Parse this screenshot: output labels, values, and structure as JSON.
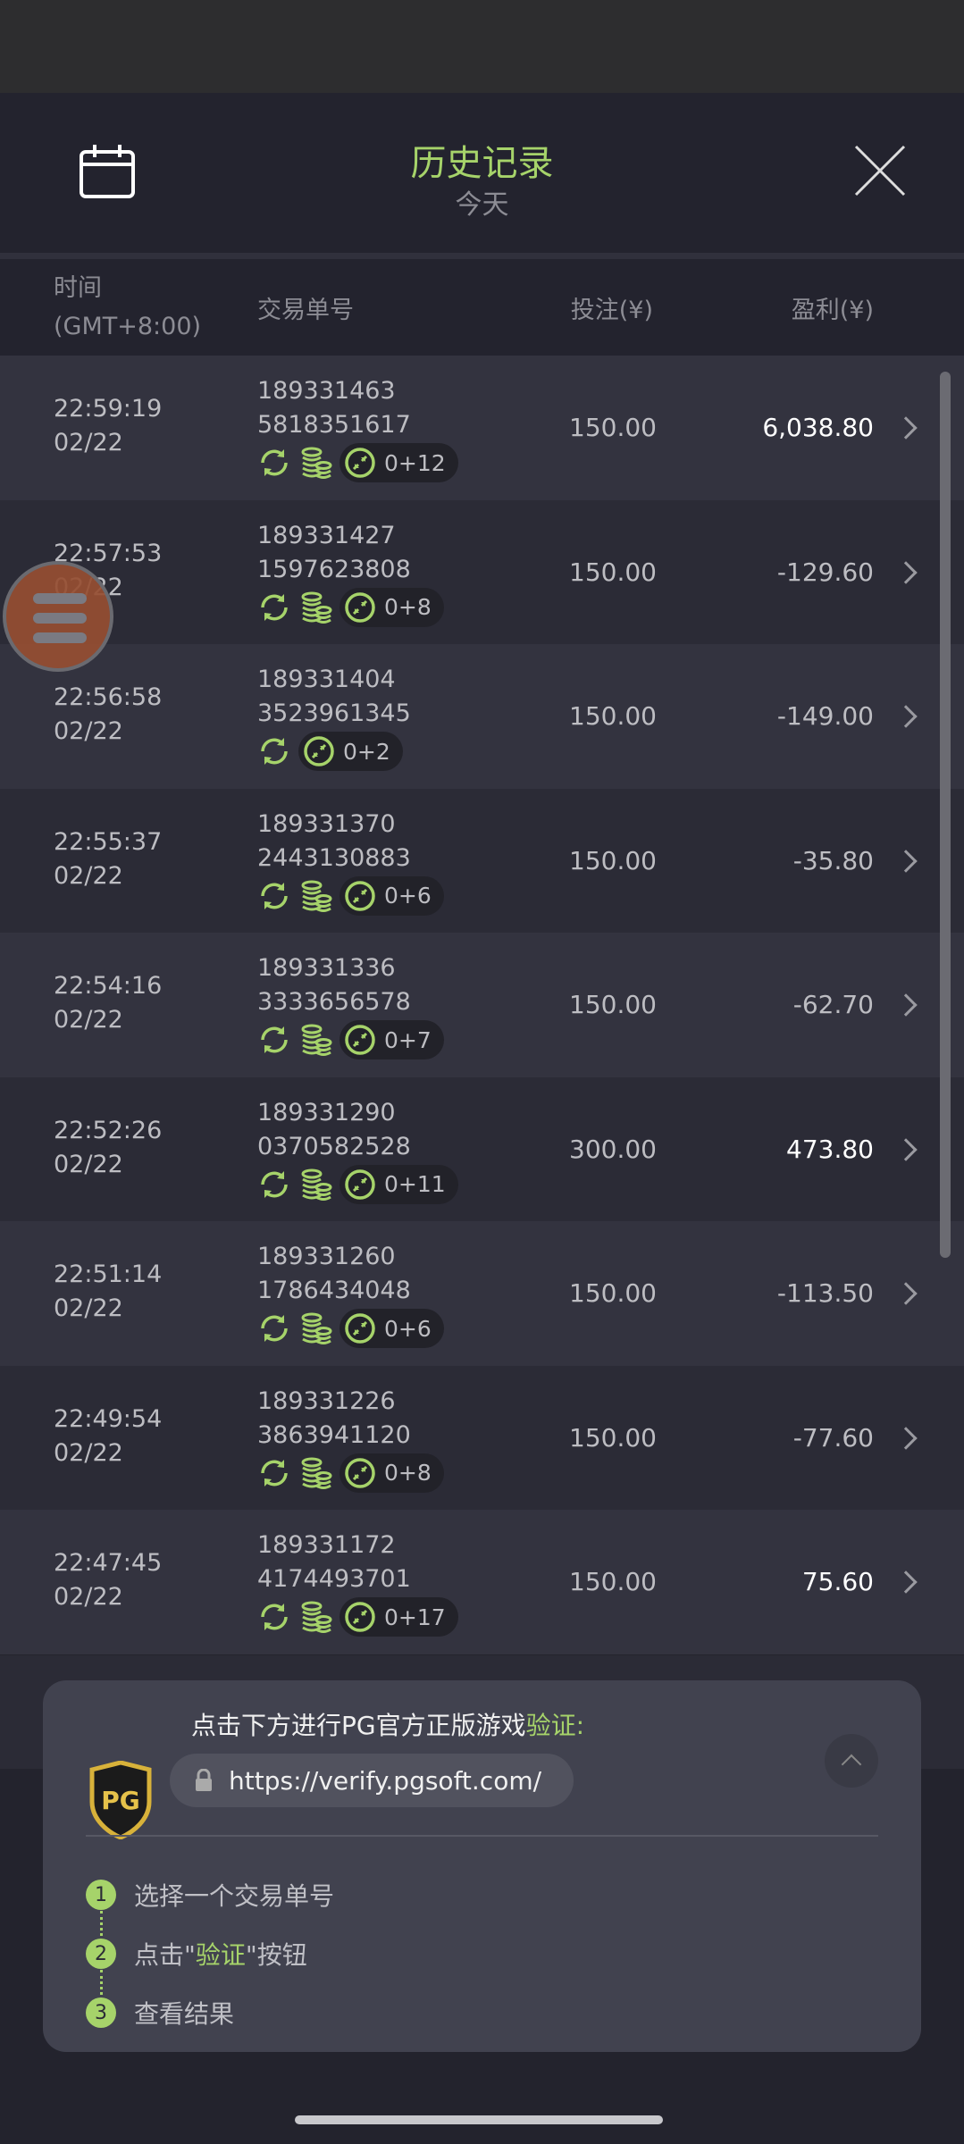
{
  "header": {
    "title": "历史记录",
    "subtitle": "今天",
    "calendar_icon": "calendar-icon",
    "close_icon": "close-icon"
  },
  "columns": {
    "time": "时间",
    "timezone": "(GMT+8:00)",
    "order": "交易单号",
    "bet": "投注(¥)",
    "profit": "盈利(¥)"
  },
  "colors": {
    "accent": "#a6d36a",
    "win_text": "#ffffff"
  },
  "rows": [
    {
      "time": "22:59:19",
      "date": "02/22",
      "order1": "189331463",
      "order2": "5818351617",
      "coins": true,
      "badge": "0+12",
      "bet": "150.00",
      "profit": "6,038.80",
      "win": true
    },
    {
      "time": "22:57:53",
      "date": "02/22",
      "order1": "189331427",
      "order2": "1597623808",
      "coins": true,
      "badge": "0+8",
      "bet": "150.00",
      "profit": "-129.60",
      "win": false
    },
    {
      "time": "22:56:58",
      "date": "02/22",
      "order1": "189331404",
      "order2": "3523961345",
      "coins": false,
      "badge": "0+2",
      "bet": "150.00",
      "profit": "-149.00",
      "win": false
    },
    {
      "time": "22:55:37",
      "date": "02/22",
      "order1": "189331370",
      "order2": "2443130883",
      "coins": true,
      "badge": "0+6",
      "bet": "150.00",
      "profit": "-35.80",
      "win": false
    },
    {
      "time": "22:54:16",
      "date": "02/22",
      "order1": "189331336",
      "order2": "3333656578",
      "coins": true,
      "badge": "0+7",
      "bet": "150.00",
      "profit": "-62.70",
      "win": false
    },
    {
      "time": "22:52:26",
      "date": "02/22",
      "order1": "189331290",
      "order2": "0370582528",
      "coins": true,
      "badge": "0+11",
      "bet": "300.00",
      "profit": "473.80",
      "win": true
    },
    {
      "time": "22:51:14",
      "date": "02/22",
      "order1": "189331260",
      "order2": "1786434048",
      "coins": true,
      "badge": "0+6",
      "bet": "150.00",
      "profit": "-113.50",
      "win": false
    },
    {
      "time": "22:49:54",
      "date": "02/22",
      "order1": "189331226",
      "order2": "3863941120",
      "coins": true,
      "badge": "0+8",
      "bet": "150.00",
      "profit": "-77.60",
      "win": false
    },
    {
      "time": "22:47:45",
      "date": "02/22",
      "order1": "189331172",
      "order2": "4174493701",
      "coins": true,
      "badge": "0+17",
      "bet": "150.00",
      "profit": "75.60",
      "win": true
    }
  ],
  "verify": {
    "logo": "PG",
    "heading": "点击下方进行PG官方正版游戏",
    "heading_accent": "验证",
    "heading_colon": ":",
    "url": "https://verify.pgsoft.com/",
    "steps": [
      {
        "num": "1",
        "pre": "选择一个交易单号",
        "accent": "",
        "post": ""
      },
      {
        "num": "2",
        "pre": "点击\"",
        "accent": "验证",
        "post": "\"按钮"
      },
      {
        "num": "3",
        "pre": "查看结果",
        "accent": "",
        "post": ""
      }
    ]
  }
}
